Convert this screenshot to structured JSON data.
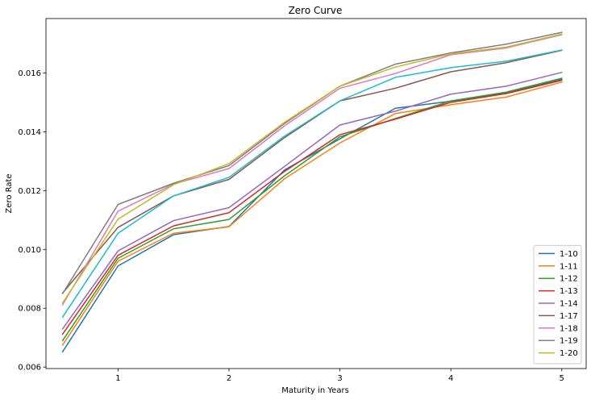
{
  "chart_data": {
    "type": "line",
    "title": "Zero Curve",
    "xlabel": "Maturity in Years",
    "ylabel": "Zero Rate",
    "xlim": [
      0.35,
      5.22
    ],
    "ylim": [
      0.00595,
      0.01785
    ],
    "xticks": [
      1,
      2,
      3,
      4,
      5
    ],
    "xtick_labels": [
      "1",
      "2",
      "3",
      "4",
      "5"
    ],
    "yticks": [
      0.006,
      0.008,
      0.01,
      0.012,
      0.014,
      0.016
    ],
    "ytick_labels": [
      "0.006",
      "0.008",
      "0.010",
      "0.012",
      "0.014",
      "0.016"
    ],
    "grid": false,
    "legend_position": "lower-right",
    "x": [
      0.5,
      1.0,
      1.5,
      2.0,
      2.5,
      3.0,
      3.5,
      4.0,
      4.5,
      5.0
    ],
    "series": [
      {
        "name": "1-10",
        "color": "#1f77b4",
        "values": [
          0.00652,
          0.00944,
          0.0105,
          0.01078,
          0.0127,
          0.01376,
          0.0148,
          0.01504,
          0.01532,
          0.01578
        ]
      },
      {
        "name": "1-11",
        "color": "#ff7f0e",
        "values": [
          0.00675,
          0.0096,
          0.01055,
          0.01077,
          0.0124,
          0.01362,
          0.01462,
          0.01492,
          0.01518,
          0.01569
        ]
      },
      {
        "name": "1-12",
        "color": "#2ca02c",
        "values": [
          0.0069,
          0.0097,
          0.0107,
          0.01102,
          0.0125,
          0.01383,
          0.01445,
          0.01505,
          0.01535,
          0.01582
        ]
      },
      {
        "name": "1-13",
        "color": "#d62728",
        "values": [
          0.00712,
          0.0098,
          0.0108,
          0.01125,
          0.01265,
          0.0139,
          0.01443,
          0.015,
          0.0153,
          0.01575
        ]
      },
      {
        "name": "1-14",
        "color": "#9467bd",
        "values": [
          0.0073,
          0.00995,
          0.01098,
          0.01142,
          0.01282,
          0.01423,
          0.0147,
          0.01528,
          0.01555,
          0.01602
        ]
      },
      {
        "name": "1-17",
        "color": "#8c564b",
        "values": [
          0.00852,
          0.01075,
          0.01182,
          0.01238,
          0.0138,
          0.01505,
          0.01548,
          0.01604,
          0.01635,
          0.01677
        ]
      },
      {
        "name": "1-18",
        "color": "#e377c2",
        "values": [
          0.00812,
          0.0113,
          0.01222,
          0.01275,
          0.0142,
          0.01548,
          0.01598,
          0.01662,
          0.01685,
          0.0173
        ]
      },
      {
        "name": "1-19",
        "color": "#7f7f7f",
        "values": [
          0.0085,
          0.01153,
          0.01225,
          0.01285,
          0.01428,
          0.01555,
          0.0163,
          0.01668,
          0.01698,
          0.01738
        ]
      },
      {
        "name": "1-20",
        "color": "#bcbd22",
        "values": [
          0.00818,
          0.01103,
          0.0122,
          0.01292,
          0.01432,
          0.01555,
          0.0162,
          0.01665,
          0.01688,
          0.01732
        ]
      },
      {
        "name": "",
        "color": "#17becf",
        "values": [
          0.0077,
          0.01055,
          0.01182,
          0.01245,
          0.01385,
          0.01505,
          0.01585,
          0.01618,
          0.0164,
          0.01678
        ]
      }
    ]
  }
}
